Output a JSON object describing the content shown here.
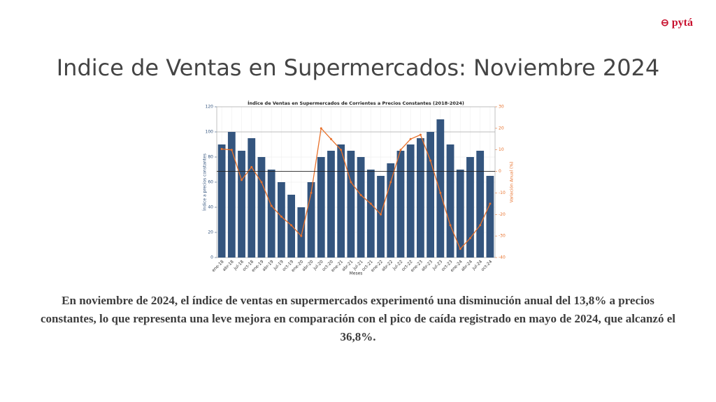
{
  "logo": "pytá",
  "slide_title": "Indice de Ventas en Supermercados: Noviembre 2024",
  "paragraph": "En noviembre de 2024, el índice de ventas en supermercados experimentó una disminución anual del 13,8% a precios constantes, lo que representa una leve mejora en comparación con el pico de caída registrado en mayo de 2024, que alcanzó el 36,8%.",
  "chart_data": {
    "type": "bar",
    "title": "Índice de Ventas en Supermercados de Corrientes a Precios Constantes (2018-2024)",
    "x_label": "Meses",
    "y_label": "Índice a precios constantes",
    "y2_label": "Variación Anual (%)",
    "categories": [
      "ene-18",
      "abr-18",
      "jul-18",
      "oct-18",
      "ene-19",
      "abr-19",
      "jul-19",
      "oct-19",
      "ene-20",
      "abr-20",
      "jul-20",
      "oct-20",
      "ene-21",
      "abr-21",
      "jul-21",
      "oct-21",
      "ene-22",
      "abr-22",
      "jul-22",
      "oct-22",
      "ene-23",
      "abr-23",
      "jul-23",
      "oct-23",
      "ene-24",
      "abr-24",
      "jul-24",
      "oct-24"
    ],
    "series": [
      {
        "type": "bar",
        "color": "#34557e",
        "values": [
          90,
          100,
          85,
          95,
          80,
          70,
          60,
          50,
          40,
          60,
          80,
          85,
          90,
          85,
          80,
          70,
          65,
          75,
          85,
          90,
          95,
          100,
          110,
          90,
          70,
          80,
          85,
          65
        ]
      },
      {
        "type": "line",
        "axis": "y2",
        "color": "#e8712b",
        "values": [
          10.4,
          10,
          -4,
          2,
          -5,
          -16,
          -21,
          -25,
          -30,
          -10,
          20,
          15,
          10,
          -5,
          -11,
          -15,
          -20,
          -5,
          10,
          15,
          17,
          5,
          -10,
          -25,
          -36,
          -31,
          -25,
          -15
        ]
      }
    ],
    "ylim": [
      0,
      120
    ],
    "yticks": [
      0,
      20,
      40,
      60,
      80,
      100,
      120
    ],
    "y2lim": [
      -40,
      30
    ],
    "y2ticks": [
      -40,
      -30,
      -20,
      -10,
      0,
      10,
      20,
      30
    ],
    "hline": 100,
    "y2_hline": 0,
    "grid": true
  }
}
